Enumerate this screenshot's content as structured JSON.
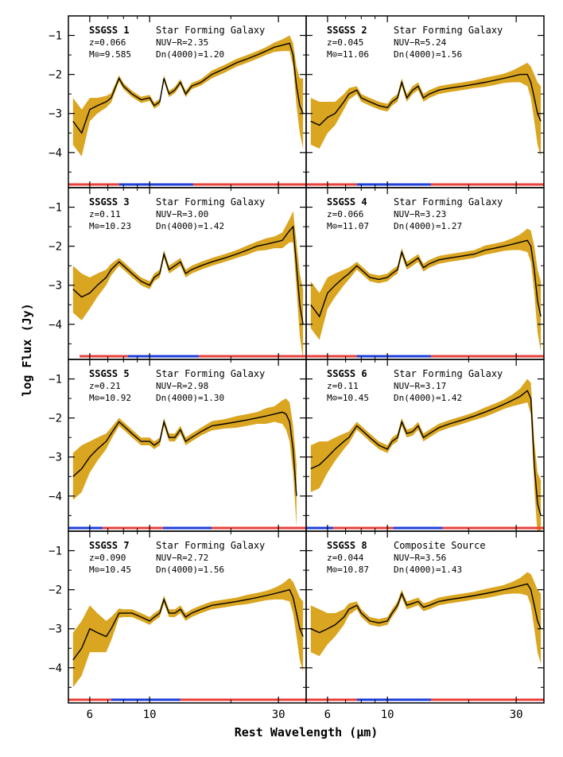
{
  "figure": {
    "ylabel": "log Flux (Jy)",
    "xlabel": "Rest Wavelength (μm)"
  },
  "colors": {
    "uncertainty_band": "#daa520",
    "spectrum_line": "#000000",
    "segment_blue": "#1f3fd8",
    "segment_red": "#e8403a"
  },
  "chart_data": [
    {
      "type": "line",
      "panel": 1,
      "name": "SSGSS 1",
      "class": "Star Forming Galaxy",
      "stats": [
        "z=0.066",
        "NUV−R=2.35",
        "M⊙=9.585",
        "Dn(4000)=1.20"
      ],
      "xscale": "log",
      "xlim": [
        5,
        38
      ],
      "ylim": [
        -4.9,
        -0.5
      ],
      "xticks": [
        6,
        10,
        30
      ],
      "xtick_labels": [],
      "yticks": [
        -1,
        -2,
        -3,
        -4
      ],
      "ytick_labels": [
        "−1",
        "−2",
        "−3",
        "−4"
      ],
      "x": [
        5.2,
        5.6,
        6.0,
        6.4,
        6.9,
        7.2,
        7.7,
        8.0,
        8.6,
        9.3,
        10.0,
        10.4,
        10.9,
        11.3,
        11.8,
        12.4,
        13.0,
        13.6,
        14.3,
        15.5,
        17,
        19,
        21,
        23,
        25,
        27,
        29,
        31,
        33,
        34,
        35,
        36,
        37
      ],
      "y": [
        -3.2,
        -3.5,
        -2.9,
        -2.8,
        -2.7,
        -2.6,
        -2.1,
        -2.3,
        -2.5,
        -2.65,
        -2.6,
        -2.8,
        -2.7,
        -2.1,
        -2.5,
        -2.4,
        -2.2,
        -2.5,
        -2.3,
        -2.2,
        -2.0,
        -1.85,
        -1.7,
        -1.6,
        -1.5,
        -1.4,
        -1.3,
        -1.25,
        -1.2,
        -1.5,
        -2.3,
        -2.8,
        -3.0
      ],
      "uncertainty": [
        0.6,
        0.6,
        0.3,
        0.2,
        0.15,
        0.12,
        0.08,
        0.08,
        0.08,
        0.08,
        0.08,
        0.08,
        0.08,
        0.08,
        0.08,
        0.08,
        0.08,
        0.08,
        0.08,
        0.08,
        0.1,
        0.1,
        0.1,
        0.1,
        0.1,
        0.1,
        0.12,
        0.15,
        0.2,
        0.3,
        0.5,
        0.7,
        0.9
      ],
      "order_bar": [
        {
          "color": "red",
          "x": [
            5.0,
            7.7
          ]
        },
        {
          "color": "blue",
          "x": [
            7.7,
            14.5
          ]
        },
        {
          "color": "red",
          "x": [
            14.5,
            38
          ]
        }
      ]
    },
    {
      "type": "line",
      "panel": 2,
      "name": "SSGSS 2",
      "class": "Star Forming Galaxy",
      "stats": [
        "z=0.045",
        "NUV−R=5.24",
        "M⊙=11.06",
        "Dn(4000)=1.56"
      ],
      "xscale": "log",
      "xlim": [
        5,
        38
      ],
      "ylim": [
        -4.9,
        -0.5
      ],
      "xticks": [
        6,
        10,
        30
      ],
      "xtick_labels": [],
      "yticks": [
        -1,
        -2,
        -3,
        -4
      ],
      "ytick_labels": [],
      "x": [
        5.2,
        5.6,
        6.0,
        6.4,
        6.9,
        7.2,
        7.7,
        8.0,
        8.6,
        9.3,
        10.0,
        10.4,
        10.9,
        11.3,
        11.8,
        12.4,
        13.0,
        13.6,
        14.3,
        15.5,
        17,
        19,
        21,
        23,
        25,
        27,
        29,
        31,
        33,
        34,
        35,
        36,
        37
      ],
      "y": [
        -3.2,
        -3.3,
        -3.1,
        -3.0,
        -2.7,
        -2.5,
        -2.4,
        -2.6,
        -2.7,
        -2.8,
        -2.85,
        -2.7,
        -2.6,
        -2.2,
        -2.6,
        -2.4,
        -2.3,
        -2.6,
        -2.5,
        -2.4,
        -2.35,
        -2.3,
        -2.25,
        -2.2,
        -2.15,
        -2.1,
        -2.05,
        -2.0,
        -2.0,
        -2.2,
        -2.6,
        -3.0,
        -3.2
      ],
      "uncertainty": [
        0.6,
        0.6,
        0.4,
        0.3,
        0.2,
        0.15,
        0.1,
        0.1,
        0.1,
        0.1,
        0.1,
        0.1,
        0.1,
        0.1,
        0.1,
        0.1,
        0.1,
        0.1,
        0.1,
        0.1,
        0.1,
        0.1,
        0.1,
        0.12,
        0.12,
        0.12,
        0.15,
        0.2,
        0.3,
        0.4,
        0.6,
        0.8,
        0.9
      ],
      "order_bar": [
        {
          "color": "red",
          "x": [
            5.0,
            7.7
          ]
        },
        {
          "color": "blue",
          "x": [
            7.7,
            14.5
          ]
        },
        {
          "color": "red",
          "x": [
            14.5,
            38
          ]
        }
      ]
    },
    {
      "type": "line",
      "panel": 3,
      "name": "SSGSS 3",
      "class": "Star Forming Galaxy",
      "stats": [
        "z=0.11",
        "NUV−R=3.00",
        "M⊙=10.23",
        "Dn(4000)=1.42"
      ],
      "xscale": "log",
      "xlim": [
        5,
        38
      ],
      "ylim": [
        -4.9,
        -0.5
      ],
      "xticks": [
        6,
        10,
        30
      ],
      "xtick_labels": [],
      "yticks": [
        -1,
        -2,
        -3,
        -4
      ],
      "ytick_labels": [
        "−1",
        "−2",
        "−3",
        "−4"
      ],
      "x": [
        5.2,
        5.6,
        6.0,
        6.4,
        6.9,
        7.2,
        7.7,
        8.0,
        8.6,
        9.3,
        10.0,
        10.4,
        10.9,
        11.3,
        11.8,
        12.4,
        13.0,
        13.6,
        14.3,
        15.5,
        17,
        19,
        21,
        23,
        25,
        27,
        29,
        31,
        33,
        34,
        35,
        36,
        37
      ],
      "y": [
        -3.1,
        -3.3,
        -3.2,
        -3.0,
        -2.8,
        -2.6,
        -2.4,
        -2.5,
        -2.7,
        -2.9,
        -3.0,
        -2.8,
        -2.7,
        -2.2,
        -2.6,
        -2.5,
        -2.4,
        -2.7,
        -2.6,
        -2.5,
        -2.4,
        -2.3,
        -2.2,
        -2.1,
        -2.0,
        -1.95,
        -1.9,
        -1.85,
        -1.6,
        -1.5,
        -2.5,
        -3.5,
        -4.0
      ],
      "uncertainty": [
        0.6,
        0.6,
        0.4,
        0.3,
        0.2,
        0.15,
        0.1,
        0.1,
        0.1,
        0.1,
        0.1,
        0.1,
        0.1,
        0.1,
        0.1,
        0.1,
        0.1,
        0.1,
        0.1,
        0.1,
        0.1,
        0.1,
        0.1,
        0.12,
        0.12,
        0.15,
        0.15,
        0.2,
        0.3,
        0.4,
        0.6,
        0.8,
        0.9
      ],
      "order_bar": [
        {
          "color": "red",
          "x": [
            5.5,
            8.3
          ]
        },
        {
          "color": "blue",
          "x": [
            8.3,
            15.2
          ]
        },
        {
          "color": "red",
          "x": [
            15.2,
            38
          ]
        }
      ]
    },
    {
      "type": "line",
      "panel": 4,
      "name": "SSGSS 4",
      "class": "Star Forming Galaxy",
      "stats": [
        "z=0.066",
        "NUV−R=3.23",
        "M⊙=11.07",
        "Dn(4000)=1.27"
      ],
      "xscale": "log",
      "xlim": [
        5,
        38
      ],
      "ylim": [
        -4.9,
        -0.5
      ],
      "xticks": [
        6,
        10,
        30
      ],
      "xtick_labels": [],
      "yticks": [
        -1,
        -2,
        -3,
        -4
      ],
      "ytick_labels": [],
      "x": [
        5.2,
        5.6,
        6.0,
        6.4,
        6.9,
        7.2,
        7.7,
        8.0,
        8.6,
        9.3,
        10.0,
        10.4,
        10.9,
        11.3,
        11.8,
        12.4,
        13.0,
        13.6,
        14.3,
        15.5,
        17,
        19,
        21,
        23,
        25,
        27,
        29,
        31,
        33,
        34,
        35,
        36,
        37
      ],
      "y": [
        -3.5,
        -3.8,
        -3.2,
        -3.0,
        -2.8,
        -2.7,
        -2.5,
        -2.6,
        -2.8,
        -2.85,
        -2.8,
        -2.7,
        -2.6,
        -2.15,
        -2.5,
        -2.4,
        -2.3,
        -2.55,
        -2.45,
        -2.35,
        -2.3,
        -2.25,
        -2.2,
        -2.1,
        -2.05,
        -2.0,
        -1.95,
        -1.9,
        -1.85,
        -2.0,
        -2.6,
        -3.4,
        -3.8
      ],
      "uncertainty": [
        0.6,
        0.6,
        0.4,
        0.3,
        0.2,
        0.15,
        0.1,
        0.1,
        0.1,
        0.1,
        0.1,
        0.1,
        0.1,
        0.1,
        0.1,
        0.1,
        0.1,
        0.1,
        0.1,
        0.1,
        0.1,
        0.1,
        0.1,
        0.12,
        0.12,
        0.12,
        0.15,
        0.2,
        0.3,
        0.4,
        0.6,
        0.8,
        0.9
      ],
      "order_bar": [
        {
          "color": "red",
          "x": [
            5.0,
            7.7
          ]
        },
        {
          "color": "blue",
          "x": [
            7.7,
            14.5
          ]
        },
        {
          "color": "red",
          "x": [
            14.5,
            38
          ]
        }
      ]
    },
    {
      "type": "line",
      "panel": 5,
      "name": "SSGSS 5",
      "class": "Star Forming Galaxy",
      "stats": [
        "z=0.21",
        "NUV−R=2.98",
        "M⊙=10.92",
        "Dn(4000)=1.30"
      ],
      "xscale": "log",
      "xlim": [
        5,
        38
      ],
      "ylim": [
        -4.9,
        -0.5
      ],
      "xticks": [
        6,
        10,
        30
      ],
      "xtick_labels": [],
      "yticks": [
        -1,
        -2,
        -3,
        -4
      ],
      "ytick_labels": [
        "−1",
        "−2",
        "−3",
        "−4"
      ],
      "x": [
        5.2,
        5.6,
        6.0,
        6.4,
        6.9,
        7.2,
        7.7,
        8.0,
        8.6,
        9.3,
        10.0,
        10.4,
        10.9,
        11.3,
        11.8,
        12.4,
        13.0,
        13.6,
        14.3,
        15.5,
        17,
        19,
        21,
        23,
        25,
        27,
        29,
        31,
        32,
        33,
        34,
        35
      ],
      "y": [
        -3.5,
        -3.3,
        -3.0,
        -2.8,
        -2.6,
        -2.4,
        -2.1,
        -2.2,
        -2.4,
        -2.6,
        -2.6,
        -2.7,
        -2.6,
        -2.1,
        -2.5,
        -2.5,
        -2.3,
        -2.6,
        -2.5,
        -2.35,
        -2.2,
        -2.15,
        -2.1,
        -2.05,
        -2.0,
        -1.95,
        -1.9,
        -1.85,
        -1.9,
        -2.1,
        -2.8,
        -4.0
      ],
      "uncertainty": [
        0.6,
        0.6,
        0.4,
        0.3,
        0.2,
        0.15,
        0.1,
        0.1,
        0.1,
        0.1,
        0.1,
        0.1,
        0.1,
        0.1,
        0.1,
        0.1,
        0.1,
        0.1,
        0.1,
        0.1,
        0.12,
        0.12,
        0.15,
        0.15,
        0.15,
        0.2,
        0.2,
        0.3,
        0.4,
        0.5,
        0.6,
        0.8
      ],
      "order_bar": [
        {
          "color": "blue",
          "x": [
            5.0,
            6.7
          ]
        },
        {
          "color": "red",
          "x": [
            6.7,
            11.2
          ]
        },
        {
          "color": "blue",
          "x": [
            11.2,
            17.0
          ]
        },
        {
          "color": "red",
          "x": [
            17.0,
            38
          ]
        }
      ]
    },
    {
      "type": "line",
      "panel": 6,
      "name": "SSGSS 6",
      "class": "Star Forming Galaxy",
      "stats": [
        "z=0.11",
        "NUV−R=3.17",
        "M⊙=10.45",
        "Dn(4000)=1.42"
      ],
      "xscale": "log",
      "xlim": [
        5,
        38
      ],
      "ylim": [
        -4.9,
        -0.5
      ],
      "xticks": [
        6,
        10,
        30
      ],
      "xtick_labels": [],
      "yticks": [
        -1,
        -2,
        -3,
        -4
      ],
      "ytick_labels": [],
      "x": [
        5.2,
        5.6,
        6.0,
        6.4,
        6.9,
        7.2,
        7.7,
        8.0,
        8.6,
        9.3,
        10.0,
        10.4,
        10.9,
        11.3,
        11.8,
        12.4,
        13.0,
        13.6,
        14.3,
        15.5,
        17,
        19,
        21,
        23,
        25,
        27,
        29,
        31,
        33,
        34,
        35,
        36,
        37
      ],
      "y": [
        -3.3,
        -3.2,
        -3.0,
        -2.8,
        -2.6,
        -2.5,
        -2.2,
        -2.3,
        -2.5,
        -2.7,
        -2.8,
        -2.6,
        -2.5,
        -2.1,
        -2.4,
        -2.35,
        -2.2,
        -2.5,
        -2.4,
        -2.25,
        -2.15,
        -2.05,
        -1.95,
        -1.85,
        -1.75,
        -1.65,
        -1.55,
        -1.45,
        -1.3,
        -1.5,
        -3.2,
        -4.2,
        -4.5
      ],
      "uncertainty": [
        0.6,
        0.6,
        0.4,
        0.3,
        0.2,
        0.15,
        0.1,
        0.1,
        0.1,
        0.1,
        0.1,
        0.1,
        0.1,
        0.1,
        0.1,
        0.1,
        0.1,
        0.1,
        0.1,
        0.1,
        0.1,
        0.1,
        0.1,
        0.12,
        0.12,
        0.12,
        0.15,
        0.2,
        0.3,
        0.4,
        0.6,
        0.8,
        0.9
      ],
      "order_bar": [
        {
          "color": "blue",
          "x": [
            5.0,
            6.3
          ]
        },
        {
          "color": "red",
          "x": [
            6.3,
            10.5
          ]
        },
        {
          "color": "blue",
          "x": [
            10.5,
            16.0
          ]
        },
        {
          "color": "red",
          "x": [
            16.0,
            38
          ]
        }
      ]
    },
    {
      "type": "line",
      "panel": 7,
      "name": "SSGSS 7",
      "class": "Star Forming Galaxy",
      "stats": [
        "z=0.090",
        "NUV−R=2.72",
        "M⊙=10.45",
        "Dn(4000)=1.56"
      ],
      "xscale": "log",
      "xlim": [
        5,
        38
      ],
      "ylim": [
        -4.9,
        -0.5
      ],
      "xticks": [
        6,
        10,
        30
      ],
      "xtick_labels": [
        "6",
        "10",
        "30"
      ],
      "yticks": [
        -1,
        -2,
        -3,
        -4
      ],
      "ytick_labels": [
        "−1",
        "−2",
        "−3",
        "−4"
      ],
      "x": [
        5.2,
        5.6,
        6.0,
        6.4,
        6.9,
        7.2,
        7.7,
        8.0,
        8.6,
        9.3,
        10.0,
        10.4,
        10.9,
        11.3,
        11.8,
        12.4,
        13.0,
        13.6,
        14.3,
        15.5,
        17,
        19,
        21,
        23,
        25,
        27,
        29,
        31,
        33,
        34,
        35,
        36,
        37
      ],
      "y": [
        -3.8,
        -3.5,
        -3.0,
        -3.1,
        -3.2,
        -3.0,
        -2.6,
        -2.6,
        -2.6,
        -2.7,
        -2.8,
        -2.7,
        -2.6,
        -2.25,
        -2.6,
        -2.6,
        -2.5,
        -2.7,
        -2.6,
        -2.5,
        -2.4,
        -2.35,
        -2.3,
        -2.25,
        -2.2,
        -2.15,
        -2.1,
        -2.05,
        -2.0,
        -2.2,
        -2.6,
        -3.0,
        -3.2
      ],
      "uncertainty": [
        0.7,
        0.7,
        0.6,
        0.5,
        0.4,
        0.3,
        0.12,
        0.1,
        0.1,
        0.1,
        0.1,
        0.1,
        0.1,
        0.1,
        0.1,
        0.1,
        0.1,
        0.1,
        0.1,
        0.1,
        0.1,
        0.1,
        0.1,
        0.12,
        0.12,
        0.12,
        0.15,
        0.2,
        0.3,
        0.4,
        0.6,
        0.8,
        0.9
      ],
      "order_bar": [
        {
          "color": "red",
          "x": [
            5.0,
            7.2
          ]
        },
        {
          "color": "blue",
          "x": [
            7.2,
            13.0
          ]
        },
        {
          "color": "red",
          "x": [
            13.0,
            38
          ]
        }
      ]
    },
    {
      "type": "line",
      "panel": 8,
      "name": "SSGSS 8",
      "class": "Composite Source",
      "stats": [
        "z=0.044",
        "NUV−R=3.56",
        "M⊙=10.87",
        "Dn(4000)=1.43"
      ],
      "xscale": "log",
      "xlim": [
        5,
        38
      ],
      "ylim": [
        -4.9,
        -0.5
      ],
      "xticks": [
        6,
        10,
        30
      ],
      "xtick_labels": [
        "6",
        "10",
        "30"
      ],
      "yticks": [
        -1,
        -2,
        -3,
        -4
      ],
      "ytick_labels": [],
      "x": [
        5.2,
        5.6,
        6.0,
        6.4,
        6.9,
        7.2,
        7.7,
        8.0,
        8.6,
        9.3,
        10.0,
        10.4,
        10.9,
        11.3,
        11.8,
        12.4,
        13.0,
        13.6,
        14.3,
        15.5,
        17,
        19,
        21,
        23,
        25,
        27,
        29,
        31,
        33,
        34,
        35,
        36,
        37
      ],
      "y": [
        -3.0,
        -3.1,
        -3.0,
        -2.9,
        -2.7,
        -2.5,
        -2.4,
        -2.6,
        -2.8,
        -2.85,
        -2.8,
        -2.6,
        -2.4,
        -2.1,
        -2.4,
        -2.35,
        -2.3,
        -2.45,
        -2.4,
        -2.3,
        -2.25,
        -2.2,
        -2.15,
        -2.1,
        -2.05,
        -2.0,
        -1.95,
        -1.9,
        -1.85,
        -2.0,
        -2.4,
        -2.8,
        -3.0
      ],
      "uncertainty": [
        0.6,
        0.6,
        0.4,
        0.3,
        0.2,
        0.15,
        0.1,
        0.1,
        0.1,
        0.1,
        0.1,
        0.1,
        0.1,
        0.1,
        0.1,
        0.1,
        0.1,
        0.1,
        0.1,
        0.1,
        0.1,
        0.1,
        0.1,
        0.12,
        0.12,
        0.12,
        0.15,
        0.2,
        0.3,
        0.4,
        0.6,
        0.8,
        0.9
      ],
      "order_bar": [
        {
          "color": "red",
          "x": [
            5.0,
            7.7
          ]
        },
        {
          "color": "blue",
          "x": [
            7.7,
            14.5
          ]
        },
        {
          "color": "red",
          "x": [
            14.5,
            38
          ]
        }
      ]
    }
  ]
}
